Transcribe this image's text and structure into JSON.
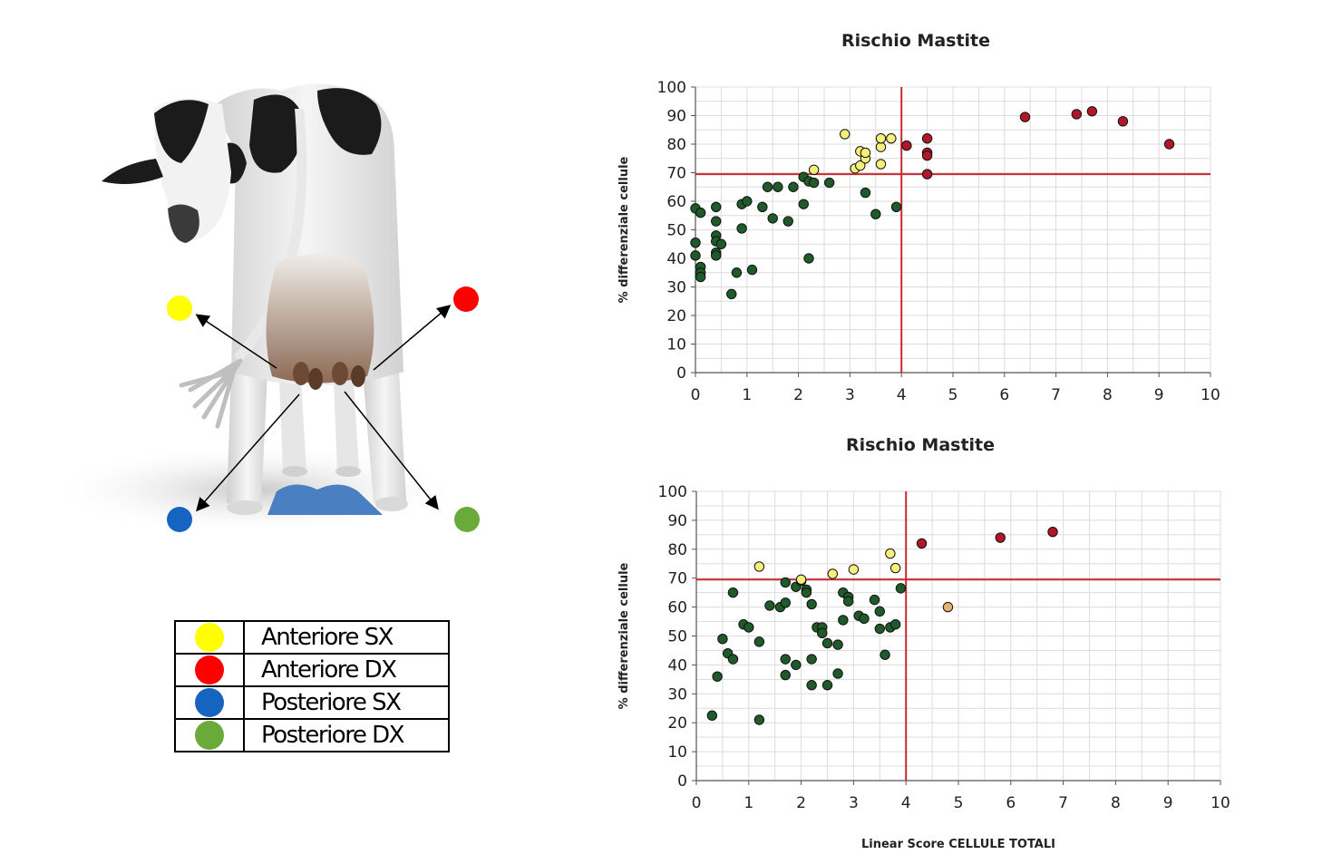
{
  "legend": {
    "items": [
      {
        "label": "Anteriore SX",
        "color": "#ffff00"
      },
      {
        "label": "Anteriore DX",
        "color": "#ff0000"
      },
      {
        "label": "Posteriore SX",
        "color": "#1565c0"
      },
      {
        "label": "Posteriore DX",
        "color": "#6aaa3a"
      }
    ]
  },
  "illustration": {
    "udder_quarter_colors": {
      "front_left": "#ffff00",
      "front_right": "#ff0000",
      "rear_left": "#1565c0",
      "rear_right": "#6aaa3a"
    }
  },
  "chart_data": [
    {
      "type": "scatter",
      "title": "Rischio Mastite",
      "xlabel": "",
      "ylabel": "% differenziale cellule",
      "xlim": [
        0,
        10
      ],
      "ylim": [
        0,
        100
      ],
      "x_ticks": [
        0,
        1,
        2,
        3,
        4,
        5,
        6,
        7,
        8,
        9,
        10
      ],
      "y_ticks": [
        0,
        10,
        20,
        30,
        40,
        50,
        60,
        70,
        80,
        90,
        100
      ],
      "grid": true,
      "thresholds": {
        "x": 4,
        "y": 69.5
      },
      "series": [
        {
          "color": "#1f5a2b",
          "points": [
            [
              0,
              57.5
            ],
            [
              0.1,
              56
            ],
            [
              0,
              45.5
            ],
            [
              0,
              41
            ],
            [
              0.1,
              37
            ],
            [
              0.1,
              35
            ],
            [
              0.1,
              33.5
            ],
            [
              0.4,
              58
            ],
            [
              0.4,
              53
            ],
            [
              0.4,
              48
            ],
            [
              0.4,
              46
            ],
            [
              0.4,
              42
            ],
            [
              0.4,
              41
            ],
            [
              0.5,
              45
            ],
            [
              0.7,
              27.5
            ],
            [
              0.8,
              35
            ],
            [
              0.9,
              50.5
            ],
            [
              0.9,
              59
            ],
            [
              1,
              60
            ],
            [
              1.1,
              36
            ],
            [
              1.3,
              58
            ],
            [
              1.4,
              65
            ],
            [
              1.5,
              54
            ],
            [
              1.6,
              65
            ],
            [
              1.8,
              53
            ],
            [
              1.9,
              65
            ],
            [
              2.1,
              59
            ],
            [
              2.1,
              68.5
            ],
            [
              2.2,
              67
            ],
            [
              2.3,
              66.5
            ],
            [
              2.2,
              40
            ],
            [
              2.6,
              66.5
            ],
            [
              3.3,
              63
            ],
            [
              3.5,
              55.5
            ],
            [
              3.9,
              58
            ]
          ]
        },
        {
          "color": "#f5f07a",
          "points": [
            [
              2.3,
              71
            ],
            [
              2.9,
              83.5
            ],
            [
              3.1,
              71.5
            ],
            [
              3.2,
              72.5
            ],
            [
              3.2,
              77.5
            ],
            [
              3.3,
              75
            ],
            [
              3.3,
              77
            ],
            [
              3.6,
              73
            ],
            [
              3.6,
              79
            ],
            [
              3.6,
              82
            ],
            [
              3.8,
              82
            ]
          ]
        },
        {
          "color": "#b0182a",
          "points": [
            [
              4.1,
              79.5
            ],
            [
              4.5,
              82
            ],
            [
              4.5,
              77
            ],
            [
              4.5,
              76
            ],
            [
              4.5,
              69.5
            ],
            [
              6.4,
              89.5
            ],
            [
              7.4,
              90.5
            ],
            [
              7.7,
              91.5
            ],
            [
              8.3,
              88
            ],
            [
              9.2,
              80
            ]
          ]
        }
      ]
    },
    {
      "type": "scatter",
      "title": "Rischio Mastite",
      "xlabel": "Linear Score CELLULE TOTALI",
      "ylabel": "% differenziale cellule",
      "xlim": [
        0,
        10
      ],
      "ylim": [
        0,
        100
      ],
      "x_ticks": [
        0,
        1,
        2,
        3,
        4,
        5,
        6,
        7,
        8,
        9,
        10
      ],
      "y_ticks": [
        0,
        10,
        20,
        30,
        40,
        50,
        60,
        70,
        80,
        90,
        100
      ],
      "grid": true,
      "thresholds": {
        "x": 4,
        "y": 69.5
      },
      "series": [
        {
          "color": "#1f5a2b",
          "points": [
            [
              0.3,
              22.5
            ],
            [
              0.4,
              36
            ],
            [
              0.5,
              49
            ],
            [
              0.6,
              44
            ],
            [
              0.7,
              42
            ],
            [
              0.7,
              65
            ],
            [
              0.9,
              54
            ],
            [
              1,
              53
            ],
            [
              1.2,
              48
            ],
            [
              1.2,
              21
            ],
            [
              1.4,
              60.5
            ],
            [
              1.6,
              60
            ],
            [
              1.7,
              61.5
            ],
            [
              1.7,
              68.5
            ],
            [
              1.7,
              42
            ],
            [
              1.7,
              36.5
            ],
            [
              1.9,
              67
            ],
            [
              1.9,
              40
            ],
            [
              2,
              69
            ],
            [
              2.1,
              66
            ],
            [
              2.1,
              65
            ],
            [
              2.2,
              61
            ],
            [
              2.2,
              42
            ],
            [
              2.2,
              33
            ],
            [
              2.3,
              53
            ],
            [
              2.4,
              53
            ],
            [
              2.4,
              51
            ],
            [
              2.5,
              47.5
            ],
            [
              2.5,
              33
            ],
            [
              2.7,
              47
            ],
            [
              2.7,
              37
            ],
            [
              2.8,
              65
            ],
            [
              2.8,
              55.5
            ],
            [
              2.9,
              63.5
            ],
            [
              2.9,
              62
            ],
            [
              3.1,
              57
            ],
            [
              3.2,
              56
            ],
            [
              3.4,
              62.5
            ],
            [
              3.5,
              58.5
            ],
            [
              3.5,
              52.5
            ],
            [
              3.6,
              43.5
            ],
            [
              3.7,
              53
            ],
            [
              3.8,
              54
            ],
            [
              3.9,
              66.5
            ]
          ]
        },
        {
          "color": "#f5f07a",
          "points": [
            [
              1.2,
              74
            ],
            [
              2,
              69.5
            ],
            [
              2.6,
              71.5
            ],
            [
              3,
              73
            ],
            [
              3.7,
              78.5
            ],
            [
              3.8,
              73.5
            ]
          ]
        },
        {
          "color": "#e8b070",
          "points": [
            [
              4.8,
              60
            ]
          ]
        },
        {
          "color": "#b0182a",
          "points": [
            [
              4.3,
              82
            ],
            [
              5.8,
              84
            ],
            [
              6.8,
              86
            ]
          ]
        }
      ]
    }
  ]
}
